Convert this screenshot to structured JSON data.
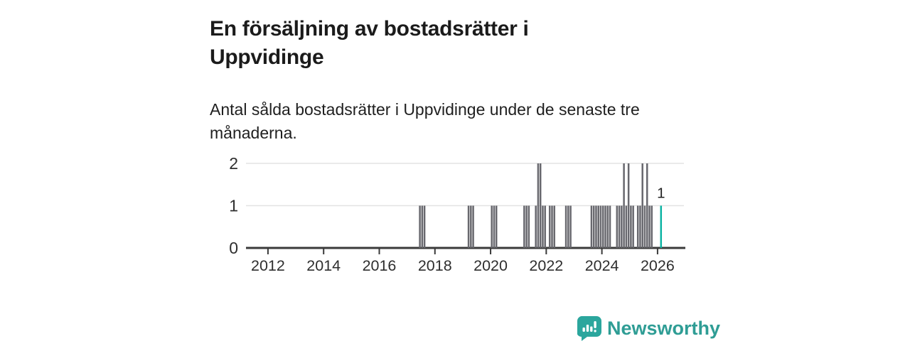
{
  "header": {
    "title": "En försäljning av bostadsrätter i Uppvidinge",
    "subtitle": "Antal sålda bostadsrätter i Uppvidinge under de senaste tre månaderna."
  },
  "chart_data": {
    "type": "bar",
    "title": "En försäljning av bostadsrätter i Uppvidinge",
    "subtitle": "Antal sålda bostadsrätter i Uppvidinge under de senaste tre månaderna.",
    "ylabel": "",
    "xlabel": "",
    "ylim": [
      0,
      2
    ],
    "yticks": [
      0,
      1,
      2
    ],
    "xticks": [
      2012,
      2014,
      2016,
      2018,
      2020,
      2022,
      2024,
      2026
    ],
    "x_range": [
      2011.21,
      2026.82
    ],
    "grid": true,
    "legend": "none",
    "colors": {
      "bar": "#68686e",
      "highlight": "#0cb3a3",
      "grid": "#e3e3e3",
      "axis": "#3a3a3a",
      "tick_label": "#2e2e2e",
      "annotation": "#222222"
    },
    "series": [
      {
        "date": "2017-06",
        "value": 1
      },
      {
        "date": "2017-07",
        "value": 1
      },
      {
        "date": "2017-08",
        "value": 1
      },
      {
        "date": "2019-03",
        "value": 1
      },
      {
        "date": "2019-04",
        "value": 1
      },
      {
        "date": "2019-05",
        "value": 1
      },
      {
        "date": "2020-01",
        "value": 1
      },
      {
        "date": "2020-02",
        "value": 1
      },
      {
        "date": "2020-03",
        "value": 1
      },
      {
        "date": "2021-03",
        "value": 1
      },
      {
        "date": "2021-04",
        "value": 1
      },
      {
        "date": "2021-05",
        "value": 1
      },
      {
        "date": "2021-08",
        "value": 1
      },
      {
        "date": "2021-09",
        "value": 2
      },
      {
        "date": "2021-10",
        "value": 2
      },
      {
        "date": "2021-11",
        "value": 1
      },
      {
        "date": "2021-12",
        "value": 1
      },
      {
        "date": "2022-02",
        "value": 1
      },
      {
        "date": "2022-03",
        "value": 1
      },
      {
        "date": "2022-04",
        "value": 1
      },
      {
        "date": "2022-09",
        "value": 1
      },
      {
        "date": "2022-10",
        "value": 1
      },
      {
        "date": "2022-11",
        "value": 1
      },
      {
        "date": "2023-08",
        "value": 1
      },
      {
        "date": "2023-09",
        "value": 1
      },
      {
        "date": "2023-10",
        "value": 1
      },
      {
        "date": "2023-11",
        "value": 1
      },
      {
        "date": "2023-12",
        "value": 1
      },
      {
        "date": "2024-01",
        "value": 1
      },
      {
        "date": "2024-02",
        "value": 1
      },
      {
        "date": "2024-03",
        "value": 1
      },
      {
        "date": "2024-04",
        "value": 1
      },
      {
        "date": "2024-07",
        "value": 1
      },
      {
        "date": "2024-08",
        "value": 1
      },
      {
        "date": "2024-09",
        "value": 1
      },
      {
        "date": "2024-10",
        "value": 2
      },
      {
        "date": "2024-11",
        "value": 1
      },
      {
        "date": "2024-12",
        "value": 2
      },
      {
        "date": "2025-01",
        "value": 1
      },
      {
        "date": "2025-02",
        "value": 1
      },
      {
        "date": "2025-04",
        "value": 1
      },
      {
        "date": "2025-05",
        "value": 1
      },
      {
        "date": "2025-06",
        "value": 2
      },
      {
        "date": "2025-07",
        "value": 1
      },
      {
        "date": "2025-08",
        "value": 2
      },
      {
        "date": "2025-09",
        "value": 1
      },
      {
        "date": "2025-10",
        "value": 1
      }
    ],
    "highlight": {
      "date": "2026-02",
      "value": 1,
      "label": "1"
    }
  },
  "footer": {
    "brand": "Newsworthy",
    "brand_color": "#2f9d95",
    "logo_icon": "newsworthy-bar-chart-bubble-icon"
  }
}
